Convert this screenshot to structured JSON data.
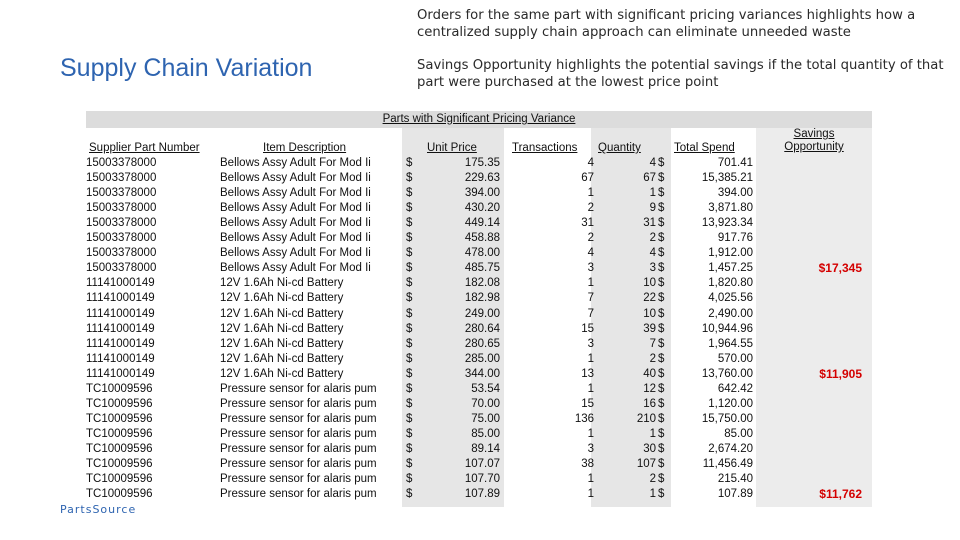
{
  "slide": {
    "title": "Supply Chain Variation",
    "note1": "Orders for the same part with significant pricing variances highlights how a centralized supply chain approach can eliminate unneeded waste",
    "note2": "Savings Opportunity highlights the potential savings if the total quantity of that part were purchased at the lowest price point",
    "logo": "PartsSource"
  },
  "table": {
    "title": "Parts with Significant Pricing Variance",
    "headers": {
      "part": "Supplier Part Number",
      "desc": "Item Description",
      "price": "Unit Price",
      "trans": "Transactions",
      "qty": "Quantity",
      "spend": "Total Spend",
      "savings": "Savings Opportunity"
    },
    "currency": "$",
    "rows": [
      [
        "15003378000",
        "Bellows Assy  Adult For Mod Ii",
        "175.35",
        "4",
        "4",
        "701.41"
      ],
      [
        "15003378000",
        "Bellows Assy  Adult For Mod Ii",
        "229.63",
        "67",
        "67",
        "15,385.21"
      ],
      [
        "15003378000",
        "Bellows Assy  Adult For Mod Ii",
        "394.00",
        "1",
        "1",
        "394.00"
      ],
      [
        "15003378000",
        "Bellows Assy  Adult For Mod Ii",
        "430.20",
        "2",
        "9",
        "3,871.80"
      ],
      [
        "15003378000",
        "Bellows Assy  Adult For Mod Ii",
        "449.14",
        "31",
        "31",
        "13,923.34"
      ],
      [
        "15003378000",
        "Bellows Assy  Adult For Mod Ii",
        "458.88",
        "2",
        "2",
        "917.76"
      ],
      [
        "15003378000",
        "Bellows Assy  Adult For Mod Ii",
        "478.00",
        "4",
        "4",
        "1,912.00"
      ],
      [
        "15003378000",
        "Bellows Assy  Adult For Mod Ii",
        "485.75",
        "3",
        "3",
        "1,457.25"
      ],
      [
        "11141000149",
        "12V 1.6Ah Ni-cd Battery",
        "182.08",
        "1",
        "10",
        "1,820.80"
      ],
      [
        "11141000149",
        "12V 1.6Ah Ni-cd Battery",
        "182.98",
        "7",
        "22",
        "4,025.56"
      ],
      [
        "11141000149",
        "12V 1.6Ah Ni-cd Battery",
        "249.00",
        "7",
        "10",
        "2,490.00"
      ],
      [
        "11141000149",
        "12V 1.6Ah Ni-cd Battery",
        "280.64",
        "15",
        "39",
        "10,944.96"
      ],
      [
        "11141000149",
        "12V 1.6Ah Ni-cd Battery",
        "280.65",
        "3",
        "7",
        "1,964.55"
      ],
      [
        "11141000149",
        "12V 1.6Ah Ni-cd Battery",
        "285.00",
        "1",
        "2",
        "570.00"
      ],
      [
        "11141000149",
        "12V 1.6Ah Ni-cd Battery",
        "344.00",
        "13",
        "40",
        "13,760.00"
      ],
      [
        "TC10009596",
        "Pressure sensor for alaris pum",
        "53.54",
        "1",
        "12",
        "642.42"
      ],
      [
        "TC10009596",
        "Pressure sensor for alaris pum",
        "70.00",
        "15",
        "16",
        "1,120.00"
      ],
      [
        "TC10009596",
        "Pressure sensor for alaris pum",
        "75.00",
        "136",
        "210",
        "15,750.00"
      ],
      [
        "TC10009596",
        "Pressure sensor for alaris pum",
        "85.00",
        "1",
        "1",
        "85.00"
      ],
      [
        "TC10009596",
        "Pressure sensor for alaris pum",
        "89.14",
        "3",
        "30",
        "2,674.20"
      ],
      [
        "TC10009596",
        "Pressure sensor for alaris pum",
        "107.07",
        "38",
        "107",
        "11,456.49"
      ],
      [
        "TC10009596",
        "Pressure sensor for alaris pum",
        "107.70",
        "1",
        "2",
        "215.40"
      ],
      [
        "TC10009596",
        "Pressure sensor for alaris pum",
        "107.89",
        "1",
        "1",
        "107.89"
      ]
    ],
    "savings": [
      {
        "row": 7,
        "value": "$17,345"
      },
      {
        "row": 14,
        "value": "$11,905"
      },
      {
        "row": 22,
        "value": "$11,762"
      }
    ]
  }
}
